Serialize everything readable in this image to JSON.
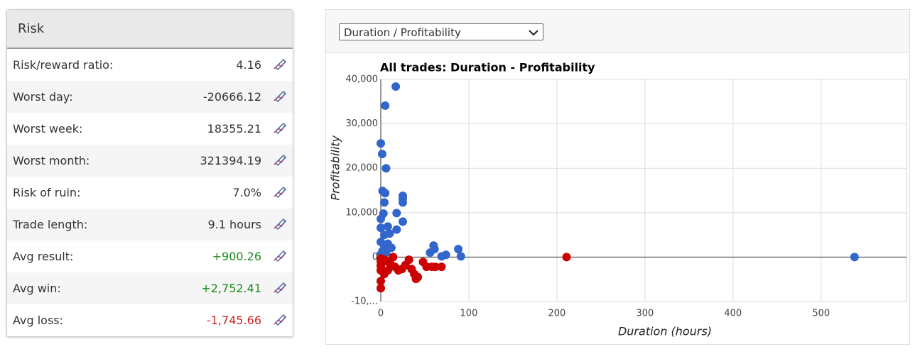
{
  "panel": {
    "title": "Risk",
    "rows": [
      {
        "label": "Risk/reward ratio:",
        "value": "4.16"
      },
      {
        "label": "Worst day:",
        "value": "-20666.12"
      },
      {
        "label": "Worst week:",
        "value": "18355.21"
      },
      {
        "label": "Worst month:",
        "value": "321394.19"
      },
      {
        "label": "Risk of ruin:",
        "value": "7.0%"
      },
      {
        "label": "Trade length:",
        "value": "9.1 hours"
      },
      {
        "label": "Avg result:",
        "value": "+900.26",
        "color": "#1e8a1e"
      },
      {
        "label": "Avg win:",
        "value": "+2,752.41",
        "color": "#1e8a1e"
      },
      {
        "label": "Avg loss:",
        "value": "-1,745.66",
        "color": "#cc2222"
      }
    ]
  },
  "dropdown": "Duration / Profitability",
  "chart_data": {
    "type": "scatter",
    "title": "All trades: Duration - Profitability",
    "x_label": "Duration (hours)",
    "y_label": "Profitability",
    "xlim": [
      0,
      597
    ],
    "ylim": [
      -10000,
      40000
    ],
    "xticks": [
      0,
      100,
      200,
      300,
      400,
      500
    ],
    "yticks": [
      {
        "value": -10000,
        "label": "-10,..."
      },
      0,
      {
        "value": 10000,
        "label": "10,000"
      },
      {
        "value": 20000,
        "label": "20,000"
      },
      {
        "value": 30000,
        "label": "30,000"
      },
      {
        "value": 40000,
        "label": "40,000"
      }
    ],
    "grid": true,
    "series": [
      {
        "color": "#3366cc",
        "x": [
          17,
          5,
          0,
          1.6,
          6,
          2,
          5,
          25,
          25,
          25,
          4,
          3,
          18,
          25,
          0,
          0,
          18,
          8,
          4,
          10,
          0,
          4,
          8,
          12,
          2,
          6,
          0,
          60,
          61,
          56,
          88,
          91,
          69,
          74,
          538
        ],
        "y": [
          38400,
          34100,
          25600,
          23200,
          20000,
          14900,
          14400,
          13800,
          13100,
          12300,
          12300,
          9800,
          9900,
          8000,
          8600,
          6600,
          6200,
          6900,
          5000,
          5300,
          3400,
          2600,
          3000,
          2100,
          1400,
          1000,
          600,
          2600,
          1800,
          1000,
          1800,
          160,
          160,
          500,
          0
        ]
      },
      {
        "color": "#cc0000",
        "x": [
          211,
          14,
          0,
          0,
          0,
          0,
          0,
          0,
          4,
          8,
          12,
          16,
          20,
          24,
          28,
          32,
          35,
          38,
          40,
          42,
          48,
          52,
          58,
          62,
          69,
          4,
          8
        ],
        "y": [
          0,
          0,
          -300,
          -1000,
          -2000,
          -3000,
          -5400,
          -7000,
          -600,
          -1100,
          -1800,
          -2200,
          -3000,
          -2700,
          -1800,
          -600,
          -2700,
          -3800,
          -4900,
          -4500,
          -1100,
          -2200,
          -2200,
          -2200,
          -2200,
          -3800,
          -3000
        ]
      }
    ]
  }
}
